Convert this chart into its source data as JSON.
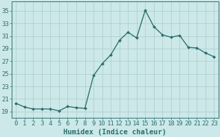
{
  "x": [
    0,
    1,
    2,
    3,
    4,
    5,
    6,
    7,
    8,
    9,
    10,
    11,
    12,
    13,
    14,
    15,
    16,
    17,
    18,
    19,
    20,
    21,
    22,
    23
  ],
  "y": [
    20.3,
    19.7,
    19.4,
    19.4,
    19.4,
    19.1,
    19.8,
    19.6,
    19.5,
    24.7,
    26.6,
    28.0,
    30.3,
    31.6,
    30.7,
    35.1,
    32.5,
    31.2,
    30.8,
    31.1,
    29.2,
    29.1,
    28.3,
    27.7
  ],
  "line_color": "#2d6e6e",
  "marker": "D",
  "markersize": 2.0,
  "linewidth": 1.0,
  "bg_color": "#cce8e8",
  "grid_color": "#afd0d0",
  "xlabel": "Humidex (Indice chaleur)",
  "ylim": [
    18.0,
    36.5
  ],
  "yticks": [
    19,
    21,
    23,
    25,
    27,
    29,
    31,
    33,
    35
  ],
  "xticks": [
    0,
    1,
    2,
    3,
    4,
    5,
    6,
    7,
    8,
    9,
    10,
    11,
    12,
    13,
    14,
    15,
    16,
    17,
    18,
    19,
    20,
    21,
    22,
    23
  ],
  "xlim": [
    -0.5,
    23.5
  ],
  "tick_color": "#2d6e6e",
  "label_fontsize": 7.5,
  "tick_fontsize": 6.5
}
